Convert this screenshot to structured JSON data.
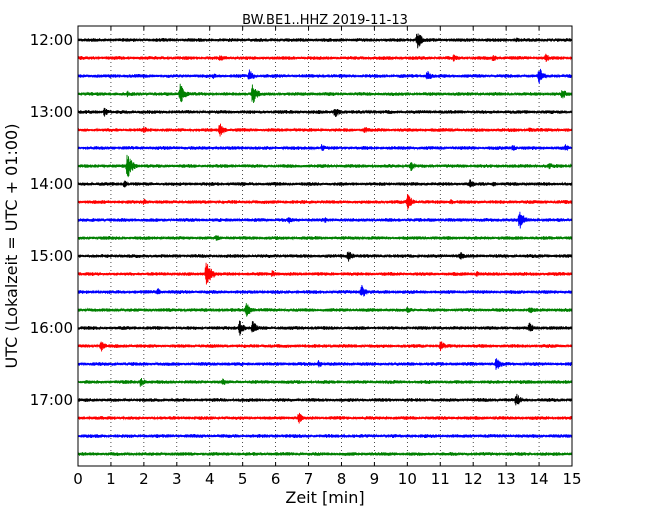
{
  "chart_data": {
    "type": "line",
    "title": "BW.BE1..HHZ 2019-11-13",
    "xlabel": "Zeit  [min]",
    "ylabel": "UTC (Lokalzeit = UTC + 01:00)",
    "xlim": [
      0,
      15
    ],
    "x_ticks": [
      "0",
      "1",
      "2",
      "3",
      "4",
      "5",
      "6",
      "7",
      "8",
      "9",
      "10",
      "11",
      "12",
      "13",
      "14",
      "15"
    ],
    "y_tick_labels": [
      "12:00",
      "13:00",
      "14:00",
      "15:00",
      "16:00",
      "17:00"
    ],
    "grid": "vertical dotted at each minute",
    "rows_per_hour": 4,
    "trace_color_cycle": [
      "#000000",
      "#ff0000",
      "#0000ff",
      "#008000"
    ],
    "traces": [
      {
        "start": "12:00",
        "events": [
          {
            "t": 10.3,
            "amp": 0.7
          },
          {
            "t": 13.3,
            "amp": 0.25
          }
        ]
      },
      {
        "start": "12:15",
        "events": [
          {
            "t": 4.3,
            "amp": 0.3
          },
          {
            "t": 11.4,
            "amp": 0.3
          },
          {
            "t": 12.6,
            "amp": 0.3
          },
          {
            "t": 14.2,
            "amp": 0.35
          }
        ]
      },
      {
        "start": "12:30",
        "events": [
          {
            "t": 4.1,
            "amp": 0.25
          },
          {
            "t": 5.2,
            "amp": 0.5
          },
          {
            "t": 10.6,
            "amp": 0.45
          },
          {
            "t": 14.0,
            "amp": 0.7
          }
        ]
      },
      {
        "start": "12:45",
        "events": [
          {
            "t": 1.5,
            "amp": 0.25
          },
          {
            "t": 3.1,
            "amp": 0.8
          },
          {
            "t": 5.3,
            "amp": 0.85
          },
          {
            "t": 14.7,
            "amp": 0.45
          }
        ]
      },
      {
        "start": "13:00",
        "events": [
          {
            "t": 0.8,
            "amp": 0.35
          },
          {
            "t": 7.8,
            "amp": 0.45
          }
        ]
      },
      {
        "start": "13:15",
        "events": [
          {
            "t": 2.0,
            "amp": 0.3
          },
          {
            "t": 4.3,
            "amp": 0.6
          },
          {
            "t": 8.7,
            "amp": 0.3
          },
          {
            "t": 13.7,
            "amp": 0.25
          }
        ]
      },
      {
        "start": "13:30",
        "events": [
          {
            "t": 7.4,
            "amp": 0.3
          },
          {
            "t": 13.2,
            "amp": 0.3
          },
          {
            "t": 14.8,
            "amp": 0.3
          }
        ]
      },
      {
        "start": "13:45",
        "events": [
          {
            "t": 1.5,
            "amp": 1.0
          },
          {
            "t": 10.1,
            "amp": 0.45
          },
          {
            "t": 14.3,
            "amp": 0.3
          }
        ]
      },
      {
        "start": "14:00",
        "events": [
          {
            "t": 1.4,
            "amp": 0.3
          },
          {
            "t": 11.9,
            "amp": 0.4
          },
          {
            "t": 12.6,
            "amp": 0.25
          }
        ]
      },
      {
        "start": "14:15",
        "events": [
          {
            "t": 2.0,
            "amp": 0.3
          },
          {
            "t": 10.0,
            "amp": 0.65
          },
          {
            "t": 11.3,
            "amp": 0.25
          }
        ]
      },
      {
        "start": "14:30",
        "events": [
          {
            "t": 6.4,
            "amp": 0.3
          },
          {
            "t": 7.5,
            "amp": 0.25
          },
          {
            "t": 13.4,
            "amp": 0.8
          }
        ]
      },
      {
        "start": "14:45",
        "events": [
          {
            "t": 4.2,
            "amp": 0.3
          }
        ]
      },
      {
        "start": "15:00",
        "events": [
          {
            "t": 8.2,
            "amp": 0.5
          },
          {
            "t": 11.6,
            "amp": 0.35
          }
        ]
      },
      {
        "start": "15:15",
        "events": [
          {
            "t": 3.9,
            "amp": 1.2
          },
          {
            "t": 5.9,
            "amp": 0.3
          },
          {
            "t": 12.1,
            "amp": 0.25
          }
        ]
      },
      {
        "start": "15:30",
        "events": [
          {
            "t": 2.4,
            "amp": 0.35
          },
          {
            "t": 8.6,
            "amp": 0.6
          }
        ]
      },
      {
        "start": "15:45",
        "events": [
          {
            "t": 5.1,
            "amp": 0.6
          },
          {
            "t": 10.0,
            "amp": 0.3
          },
          {
            "t": 13.7,
            "amp": 0.35
          }
        ]
      },
      {
        "start": "16:00",
        "events": [
          {
            "t": 4.9,
            "amp": 0.6
          },
          {
            "t": 5.3,
            "amp": 0.55
          },
          {
            "t": 13.7,
            "amp": 0.45
          }
        ]
      },
      {
        "start": "16:15",
        "events": [
          {
            "t": 0.7,
            "amp": 0.45
          },
          {
            "t": 11.0,
            "amp": 0.45
          }
        ]
      },
      {
        "start": "16:30",
        "events": [
          {
            "t": 7.3,
            "amp": 0.3
          },
          {
            "t": 12.7,
            "amp": 0.55
          }
        ]
      },
      {
        "start": "16:45",
        "events": [
          {
            "t": 1.9,
            "amp": 0.4
          },
          {
            "t": 4.4,
            "amp": 0.3
          }
        ]
      },
      {
        "start": "17:00",
        "events": [
          {
            "t": 13.3,
            "amp": 0.55
          }
        ]
      },
      {
        "start": "17:15",
        "events": [
          {
            "t": 6.7,
            "amp": 0.45
          }
        ]
      },
      {
        "start": "17:30",
        "events": []
      },
      {
        "start": "17:45",
        "events": []
      }
    ]
  }
}
